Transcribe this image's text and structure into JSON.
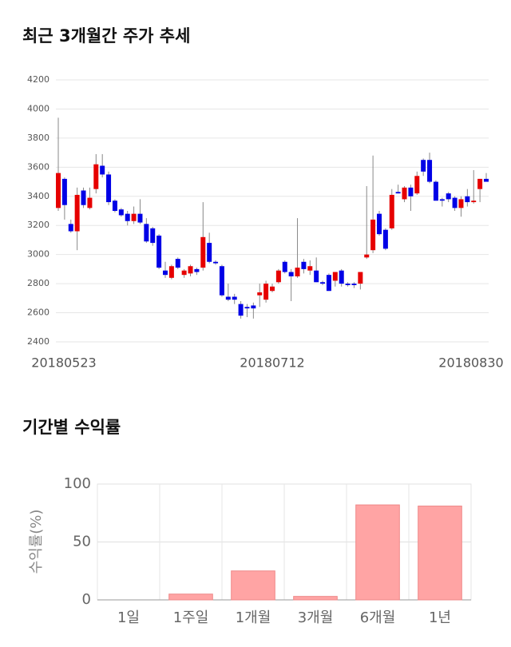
{
  "chart_data": [
    {
      "type": "candlestick",
      "title": "최근 3개월간 주가 추세",
      "categories": [
        "20180523",
        null,
        null,
        null,
        null,
        null,
        null,
        null,
        null,
        null,
        null,
        null,
        null,
        null,
        null,
        null,
        null,
        null,
        null,
        null,
        null,
        null,
        null,
        null,
        null,
        null,
        null,
        null,
        null,
        null,
        null,
        null,
        null,
        null,
        "20180712",
        null,
        null,
        null,
        null,
        null,
        null,
        null,
        null,
        null,
        null,
        null,
        null,
        null,
        null,
        null,
        null,
        null,
        null,
        null,
        null,
        null,
        null,
        null,
        null,
        null,
        null,
        null,
        null,
        null,
        null,
        null,
        null,
        null,
        "20180830"
      ],
      "open": [
        3320,
        3520,
        3210,
        3160,
        3440,
        3320,
        3450,
        3610,
        3550,
        3370,
        3310,
        3280,
        3230,
        3280,
        3210,
        3180,
        3130,
        2890,
        2840,
        2970,
        2860,
        2870,
        2900,
        2910,
        3080,
        2950,
        2920,
        2710,
        2710,
        2660,
        2640,
        2650,
        2720,
        2690,
        2750,
        2810,
        2950,
        2880,
        2850,
        2950,
        2890,
        2890,
        2810,
        2860,
        2820,
        2890,
        2800,
        2800,
        2800,
        2980,
        3030,
        3280,
        3170,
        3180,
        3430,
        3380,
        3460,
        3420,
        3650,
        3650,
        3500,
        3380,
        3420,
        3390,
        3320,
        3400,
        3360,
        3450,
        3520
      ],
      "high": [
        3940,
        3530,
        3240,
        3460,
        3460,
        3460,
        3690,
        3690,
        3570,
        3380,
        3320,
        3300,
        3330,
        3380,
        3250,
        3190,
        3140,
        2950,
        2930,
        2980,
        2900,
        2930,
        2910,
        3360,
        3150,
        2960,
        2930,
        2800,
        2730,
        2680,
        2660,
        2670,
        2800,
        2820,
        2800,
        2900,
        2960,
        2900,
        3250,
        2970,
        2960,
        2980,
        2820,
        2870,
        2880,
        2900,
        2810,
        2810,
        2880,
        3470,
        3680,
        3300,
        3180,
        3450,
        3480,
        3470,
        3480,
        3570,
        3660,
        3700,
        3510,
        3390,
        3430,
        3400,
        3400,
        3450,
        3580,
        3520,
        3560
      ],
      "low": [
        3300,
        3240,
        3150,
        3030,
        3320,
        3310,
        3420,
        3530,
        3340,
        3290,
        3260,
        3200,
        3210,
        3210,
        3080,
        3060,
        2900,
        2840,
        2830,
        2900,
        2840,
        2850,
        2860,
        2890,
        2940,
        2930,
        2710,
        2680,
        2660,
        2560,
        2570,
        2560,
        2640,
        2670,
        2740,
        2800,
        2870,
        2680,
        2840,
        2870,
        2860,
        2810,
        2790,
        2750,
        2780,
        2780,
        2780,
        2770,
        2760,
        2970,
        3010,
        3130,
        3030,
        3170,
        3420,
        3360,
        3300,
        3410,
        3540,
        3490,
        3370,
        3330,
        3360,
        3300,
        3260,
        3330,
        3350,
        3360,
        3500
      ],
      "close": [
        3560,
        3340,
        3160,
        3410,
        3340,
        3390,
        3620,
        3550,
        3360,
        3300,
        3270,
        3230,
        3280,
        3220,
        3090,
        3080,
        2910,
        2860,
        2920,
        2910,
        2890,
        2920,
        2880,
        3120,
        2950,
        2940,
        2720,
        2690,
        2690,
        2580,
        2630,
        2630,
        2740,
        2800,
        2780,
        2890,
        2880,
        2850,
        2910,
        2900,
        2920,
        2810,
        2800,
        2750,
        2880,
        2800,
        2790,
        2790,
        2880,
        3000,
        3240,
        3140,
        3040,
        3410,
        3420,
        3460,
        3400,
        3540,
        3570,
        3500,
        3370,
        3370,
        3380,
        3320,
        3380,
        3360,
        3370,
        3520,
        3500
      ],
      "up_color": "#e60000",
      "down_color": "#0000e6",
      "ylim": [
        2400,
        4200
      ],
      "yticks": [
        2400,
        2600,
        2800,
        3000,
        3200,
        3400,
        3600,
        3800,
        4000,
        4200
      ],
      "grid": true
    },
    {
      "type": "bar",
      "title": "기간별 수익률",
      "ylabel": "수익률(%)",
      "categories": [
        "1일",
        "1주일",
        "1개월",
        "3개월",
        "6개월",
        "1년"
      ],
      "values": [
        0,
        5,
        25,
        3,
        82,
        81
      ],
      "color": "#ffa4a4",
      "ylim": [
        0,
        100
      ],
      "yticks": [
        0,
        50,
        100
      ],
      "grid": true
    }
  ]
}
